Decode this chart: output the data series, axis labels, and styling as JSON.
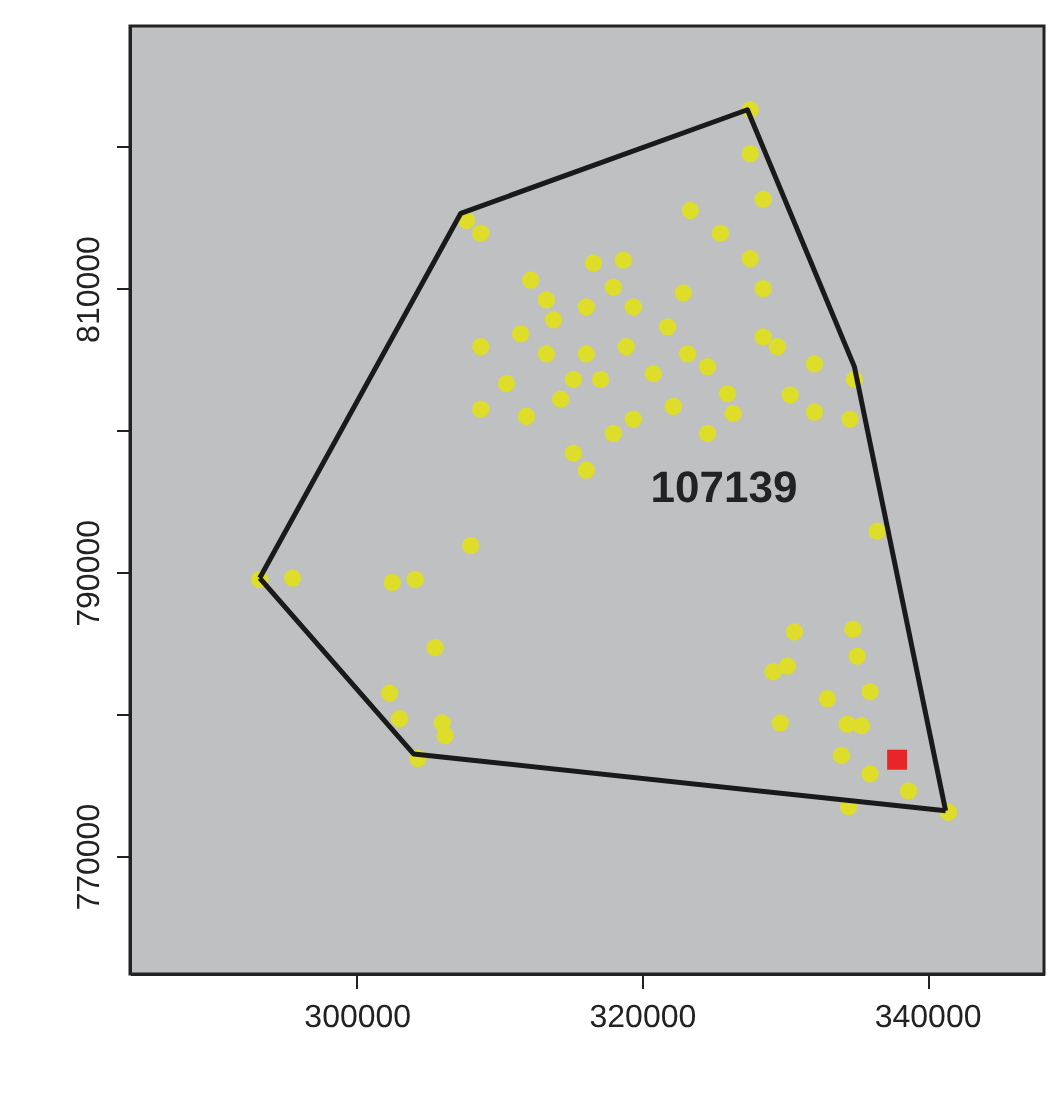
{
  "chart_data": {
    "type": "scatter",
    "xlim": [
      284100,
      348200
    ],
    "ylim": [
      761700,
      828500
    ],
    "xticks": [
      300000,
      320000,
      340000
    ],
    "yticks": [
      770000,
      {
        "value": 780000,
        "label": null
      },
      790000,
      {
        "value": 800000,
        "label": null
      },
      810000,
      {
        "value": 820000,
        "label": null
      }
    ],
    "grid": false,
    "annotations": [
      "107139"
    ],
    "series": [
      {
        "marker": "circle",
        "color": "#dddd2a",
        "x": [
          327600,
          327600,
          328500,
          323400,
          325500,
          327600,
          328500,
          328500,
          329500,
          332100,
          330400,
          332100,
          334900,
          334600,
          322900,
          307700,
          308700,
          312200,
          316600,
          318700,
          308700,
          311500,
          313800,
          316100,
          319400,
          321800,
          313300,
          316100,
          318900,
          310500,
          308700,
          311900,
          314300,
          317100,
          320800,
          324600,
          326000,
          326400,
          324600,
          322200,
          319400,
          318000,
          315200,
          316100,
          313300,
          318000,
          323200,
          315200,
          336500,
          308000,
          295500,
          293200,
          302500,
          304100,
          305500,
          302300,
          303000,
          306000,
          306200,
          304300,
          330700,
          334800,
          335100,
          329200,
          330200,
          333000,
          336000,
          329700,
          334400,
          335400,
          334000,
          336000,
          338700,
          334500,
          341500
        ],
        "values": [
          822600,
          819500,
          816300,
          815500,
          813900,
          812100,
          810000,
          806600,
          805900,
          804700,
          802500,
          801300,
          803600,
          800800,
          809700,
          814800,
          813900,
          810600,
          811800,
          812000,
          805900,
          806800,
          807800,
          808700,
          808700,
          807300,
          805400,
          805400,
          805900,
          803300,
          801500,
          801000,
          802200,
          803600,
          804000,
          804500,
          802600,
          801200,
          799800,
          801700,
          800800,
          799800,
          798400,
          797200,
          809200,
          810100,
          805400,
          803600,
          792900,
          791900,
          789600,
          789500,
          789300,
          789500,
          784700,
          781500,
          779700,
          779400,
          778500,
          776900,
          785800,
          786000,
          784100,
          783000,
          783400,
          781100,
          781600,
          779400,
          779300,
          779200,
          777100,
          775800,
          774600,
          773500,
          773100
        ]
      },
      {
        "type": "line",
        "marker": "none",
        "line_style": "solid",
        "color": "#1a1a1a",
        "x": [
          293200,
          307300,
          327400,
          334900,
          341300
        ],
        "values": [
          789600,
          815300,
          822600,
          804500,
          773200
        ]
      },
      {
        "type": "line",
        "marker": "none",
        "line_style": "solid",
        "color": "#1a1a1a",
        "x": [
          293200,
          304000,
          341300
        ],
        "values": [
          789600,
          777200,
          773200
        ]
      },
      {
        "type": "scatter",
        "marker": "square",
        "color": "#e8262a",
        "x": [
          337900
        ],
        "values": [
          776800
        ]
      }
    ]
  }
}
